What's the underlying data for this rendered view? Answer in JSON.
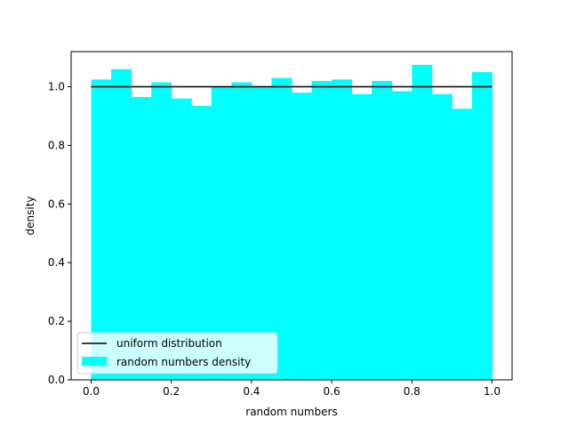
{
  "chart_data": {
    "type": "bar",
    "xlabel": "random numbers",
    "ylabel": "density",
    "xlim": [
      -0.05,
      1.05
    ],
    "ylim": [
      0.0,
      1.12
    ],
    "xticks": [
      0.0,
      0.2,
      0.4,
      0.6,
      0.8,
      1.0
    ],
    "xtick_labels": [
      "0.0",
      "0.2",
      "0.4",
      "0.6",
      "0.8",
      "1.0"
    ],
    "yticks": [
      0.0,
      0.2,
      0.4,
      0.6,
      0.8,
      1.0
    ],
    "ytick_labels": [
      "0.0",
      "0.2",
      "0.4",
      "0.6",
      "0.8",
      "1.0"
    ],
    "bin_edges": [
      0.0,
      0.05,
      0.1,
      0.15,
      0.2,
      0.25,
      0.3,
      0.35,
      0.4,
      0.45,
      0.5,
      0.55,
      0.6,
      0.65,
      0.7,
      0.75,
      0.8,
      0.85,
      0.9,
      0.95,
      1.0
    ],
    "series": [
      {
        "name": "random numbers density",
        "kind": "histogram",
        "color": "#00ffff",
        "values": [
          1.025,
          1.06,
          0.965,
          1.015,
          0.96,
          0.935,
          1.0,
          1.015,
          1.0,
          1.03,
          0.98,
          1.02,
          1.025,
          0.975,
          1.02,
          0.985,
          1.075,
          0.975,
          0.925,
          1.05
        ]
      },
      {
        "name": "uniform distribution",
        "kind": "line",
        "color": "#000000",
        "x": [
          0.0,
          1.0
        ],
        "y": [
          1.0,
          1.0
        ]
      }
    ],
    "legend": {
      "placement": "lower-left",
      "entries": [
        "uniform distribution",
        "random numbers density"
      ]
    },
    "grid": false
  }
}
